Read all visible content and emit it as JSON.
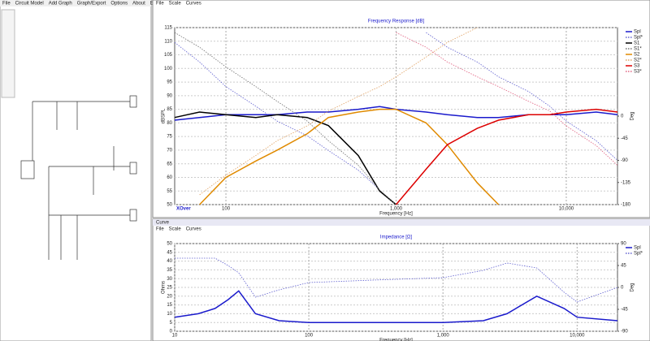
{
  "app_menu": [
    "File",
    "Circuit Model",
    "Add Graph",
    "Graph/Export",
    "Options",
    "About",
    "Exit"
  ],
  "chart_data": [
    {
      "type": "line",
      "menu": [
        "File",
        "Scale",
        "Curves"
      ],
      "title": "Frequency Response [dB]",
      "xlabel": "Frequency [Hz]",
      "ylabel": "dBSPL",
      "y2label": "Deg",
      "note": "XOver",
      "log_x": true,
      "grid": true,
      "xlim": [
        50,
        20000
      ],
      "xticks": [
        100,
        {
          "value": 1000,
          "label": "1,000"
        },
        {
          "value": 10000,
          "label": "10,000"
        }
      ],
      "ylim": [
        50,
        115
      ],
      "yticks": [
        50,
        55,
        60,
        65,
        70,
        75,
        80,
        85,
        90,
        95,
        100,
        105,
        110,
        115
      ],
      "y2lim": [
        -180,
        180
      ],
      "y2ticks": [
        -180,
        -135,
        -90,
        -45,
        0
      ],
      "x": [
        50,
        70,
        100,
        150,
        200,
        300,
        400,
        600,
        800,
        1000,
        1500,
        2000,
        3000,
        4000,
        6000,
        8000,
        10000,
        15000,
        20000
      ],
      "series": [
        {
          "name": "Spl",
          "color": "#1a1acc",
          "style": "solid",
          "values": [
            81,
            82,
            83,
            83,
            83,
            84,
            84,
            85,
            86,
            85,
            84,
            83,
            82,
            82,
            83,
            83,
            83,
            84,
            83
          ]
        },
        {
          "name": "Spl*",
          "color": "#6060d0",
          "style": "dotted",
          "axis": "y2",
          "values": [
            150,
            110,
            60,
            20,
            -10,
            -40,
            -70,
            -110,
            -150,
            null,
            170,
            140,
            110,
            80,
            50,
            20,
            -10,
            -50,
            -90
          ]
        },
        {
          "name": "S1",
          "color": "#000000",
          "style": "solid",
          "values": [
            82,
            84,
            83,
            82,
            83,
            82,
            79,
            68,
            55,
            50,
            null,
            null,
            null,
            null,
            null,
            null,
            null,
            null,
            null
          ]
        },
        {
          "name": "S1*",
          "color": "#707070",
          "style": "dotted",
          "axis": "y2",
          "values": [
            170,
            140,
            100,
            60,
            30,
            -10,
            -50,
            -100,
            -150,
            -180,
            null,
            null,
            null,
            null,
            null,
            null,
            null,
            null,
            null
          ]
        },
        {
          "name": "S2",
          "color": "#e08a00",
          "style": "solid",
          "values": [
            null,
            50,
            60,
            66,
            70,
            76,
            82,
            84,
            85,
            85,
            80,
            72,
            58,
            50,
            null,
            null,
            null,
            null,
            null
          ]
        },
        {
          "name": "S2*",
          "color": "#e0a060",
          "style": "dotted",
          "axis": "y2",
          "values": [
            null,
            -160,
            -120,
            -80,
            -50,
            -20,
            10,
            40,
            60,
            80,
            120,
            150,
            180,
            null,
            null,
            null,
            null,
            null,
            null
          ]
        },
        {
          "name": "S3",
          "color": "#dd0000",
          "style": "solid",
          "values": [
            null,
            null,
            null,
            null,
            null,
            null,
            null,
            null,
            null,
            50,
            63,
            72,
            78,
            81,
            83,
            83,
            84,
            85,
            84
          ]
        },
        {
          "name": "S3*",
          "color": "#e06080",
          "style": "dotted",
          "axis": "y2",
          "values": [
            null,
            null,
            null,
            null,
            null,
            null,
            null,
            null,
            null,
            170,
            140,
            110,
            80,
            60,
            30,
            10,
            -20,
            -60,
            -100
          ]
        }
      ]
    },
    {
      "type": "line",
      "window_title": "Curve",
      "menu": [
        "File",
        "Scale",
        "Curves"
      ],
      "title": "Impedance [Ω]",
      "xlabel": "Frequency [Hz]",
      "ylabel": "Ohms",
      "y2label": "Deg",
      "log_x": true,
      "grid": true,
      "xlim": [
        10,
        20000
      ],
      "xticks": [
        10,
        100,
        {
          "value": 1000,
          "label": "1,000"
        },
        {
          "value": 10000,
          "label": "10,000"
        }
      ],
      "ylim": [
        0,
        50
      ],
      "yticks": [
        0,
        5,
        10,
        15,
        20,
        25,
        30,
        35,
        40,
        45,
        50
      ],
      "y2lim": [
        -90,
        90
      ],
      "y2ticks": [
        -90,
        -45,
        0,
        45,
        90
      ],
      "x": [
        10,
        15,
        20,
        25,
        30,
        40,
        60,
        100,
        300,
        1000,
        2000,
        3000,
        5000,
        8000,
        10000,
        20000
      ],
      "series": [
        {
          "name": "Spl",
          "color": "#1a1acc",
          "style": "solid",
          "values": [
            8,
            10,
            13,
            18,
            23,
            10,
            6,
            5,
            5,
            5,
            6,
            10,
            20,
            13,
            8,
            6
          ]
        },
        {
          "name": "Spl*",
          "color": "#6060d0",
          "style": "dotted",
          "axis": "y2",
          "values": [
            60,
            60,
            60,
            45,
            30,
            -20,
            -5,
            10,
            15,
            20,
            35,
            50,
            40,
            -10,
            -30,
            0
          ]
        }
      ]
    }
  ]
}
